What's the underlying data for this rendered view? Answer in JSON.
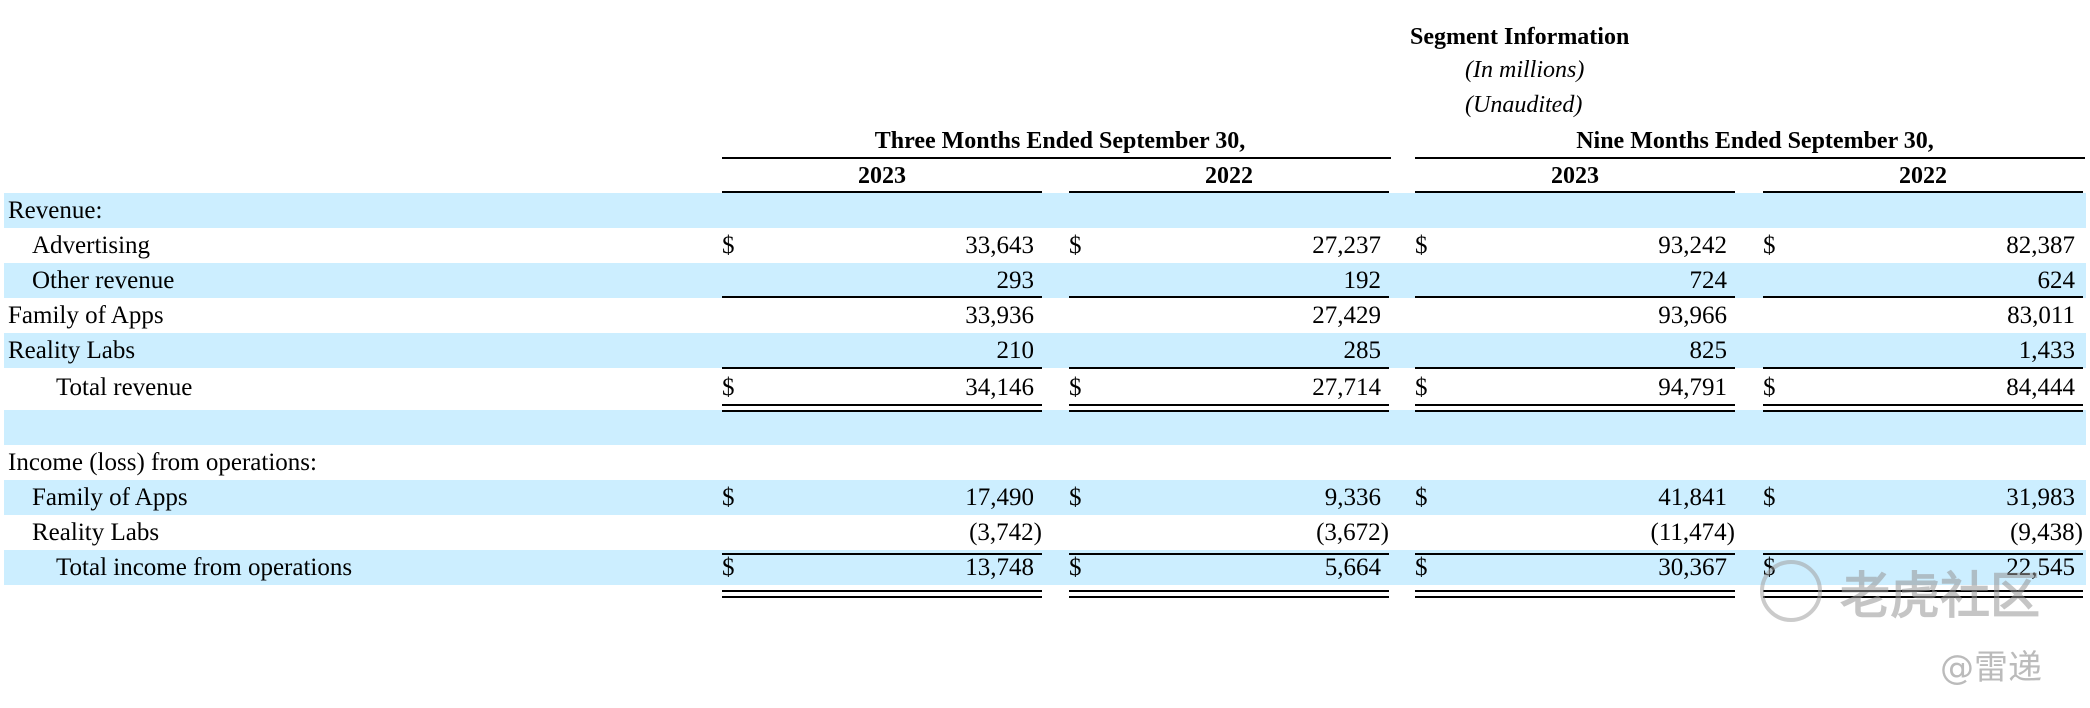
{
  "header": {
    "title": "Segment Information",
    "subtitle1": "(In millions)",
    "subtitle2": "(Unaudited)",
    "group1": "Three Months Ended September 30,",
    "group2": "Nine Months Ended September 30,",
    "years": [
      "2023",
      "2022",
      "2023",
      "2022"
    ]
  },
  "rows": [
    {
      "label": "Revenue:",
      "indent": 0,
      "dollar": false,
      "values": [
        "",
        "",
        "",
        ""
      ],
      "shaded": true
    },
    {
      "label": "Advertising",
      "indent": 1,
      "dollar": true,
      "values": [
        "33,643",
        "27,237",
        "93,242",
        "82,387"
      ],
      "shaded": false
    },
    {
      "label": "Other revenue",
      "indent": 1,
      "dollar": false,
      "values": [
        "293",
        "192",
        "724",
        "624"
      ],
      "shaded": true
    },
    {
      "label": "Family of Apps",
      "indent": 0,
      "dollar": false,
      "values": [
        "33,936",
        "27,429",
        "93,966",
        "83,011"
      ],
      "shaded": false
    },
    {
      "label": "Reality Labs",
      "indent": 0,
      "dollar": false,
      "values": [
        "210",
        "285",
        "825",
        "1,433"
      ],
      "shaded": true
    },
    {
      "label": "Total revenue",
      "indent": 2,
      "dollar": true,
      "values": [
        "34,146",
        "27,714",
        "94,791",
        "84,444"
      ],
      "shaded": false
    },
    {
      "label": "",
      "indent": 0,
      "dollar": false,
      "values": [
        "",
        "",
        "",
        ""
      ],
      "shaded": true
    },
    {
      "label": "Income (loss) from operations:",
      "indent": 0,
      "dollar": false,
      "values": [
        "",
        "",
        "",
        ""
      ],
      "shaded": false
    },
    {
      "label": "Family of Apps",
      "indent": 1,
      "dollar": true,
      "values": [
        "17,490",
        "9,336",
        "41,841",
        "31,983"
      ],
      "shaded": true
    },
    {
      "label": "Reality Labs",
      "indent": 1,
      "dollar": false,
      "values": [
        "(3,742)",
        "(3,672)",
        "(11,474)",
        "(9,438)"
      ],
      "shaded": false
    },
    {
      "label": "Total income from operations",
      "indent": 2,
      "dollar": true,
      "values": [
        "13,748",
        "5,664",
        "30,367",
        "22,545"
      ],
      "shaded": true
    }
  ],
  "dollar_sign": "$",
  "watermark": {
    "text1": "老虎社区",
    "text2": "@雷递"
  }
}
